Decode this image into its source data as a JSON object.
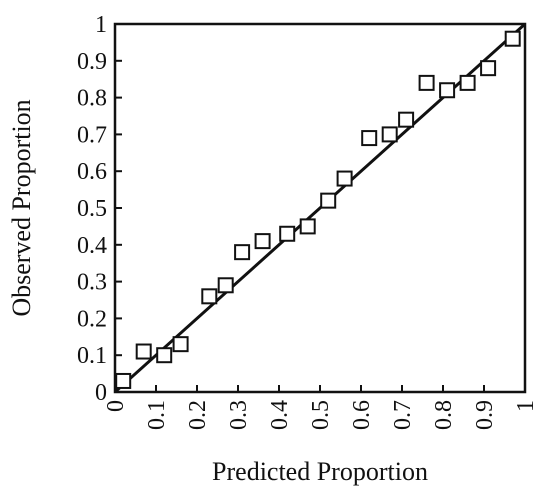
{
  "chart_data": {
    "type": "scatter",
    "title": "",
    "xlabel": "Predicted Proportion",
    "ylabel": "Observed Proportion",
    "xlim": [
      0,
      1
    ],
    "ylim": [
      0,
      1
    ],
    "x_ticks": [
      "0",
      "0.1",
      "0.2",
      "0.3",
      "0.4",
      "0.5",
      "0.6",
      "0.7",
      "0.8",
      "0.9",
      "1"
    ],
    "y_ticks": [
      "0",
      "0.1",
      "0.2",
      "0.3",
      "0.4",
      "0.5",
      "0.6",
      "0.7",
      "0.8",
      "0.9",
      "1"
    ],
    "grid": false,
    "legend": "none",
    "marker": "open-square",
    "points": [
      {
        "x": 0.02,
        "y": 0.03
      },
      {
        "x": 0.07,
        "y": 0.11
      },
      {
        "x": 0.12,
        "y": 0.1
      },
      {
        "x": 0.16,
        "y": 0.13
      },
      {
        "x": 0.23,
        "y": 0.26
      },
      {
        "x": 0.27,
        "y": 0.29
      },
      {
        "x": 0.31,
        "y": 0.38
      },
      {
        "x": 0.36,
        "y": 0.41
      },
      {
        "x": 0.42,
        "y": 0.43
      },
      {
        "x": 0.47,
        "y": 0.45
      },
      {
        "x": 0.52,
        "y": 0.52
      },
      {
        "x": 0.56,
        "y": 0.58
      },
      {
        "x": 0.62,
        "y": 0.69
      },
      {
        "x": 0.67,
        "y": 0.7
      },
      {
        "x": 0.71,
        "y": 0.74
      },
      {
        "x": 0.76,
        "y": 0.84
      },
      {
        "x": 0.81,
        "y": 0.82
      },
      {
        "x": 0.86,
        "y": 0.84
      },
      {
        "x": 0.91,
        "y": 0.88
      },
      {
        "x": 0.97,
        "y": 0.96
      }
    ],
    "reference_line": {
      "x": [
        0,
        1
      ],
      "y": [
        0,
        1
      ]
    },
    "colors": {
      "ink": "#111111",
      "background": "#ffffff"
    }
  }
}
